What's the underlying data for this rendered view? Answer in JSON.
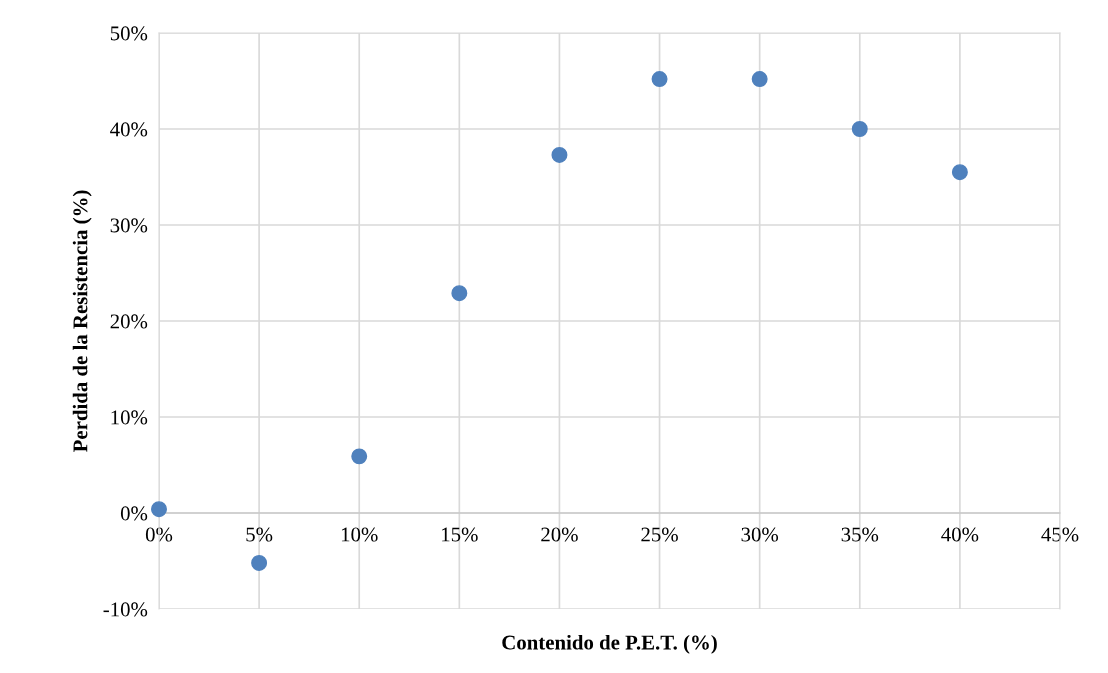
{
  "chart_data": {
    "type": "scatter",
    "xlabel": "Contenido de P.E.T. (%)",
    "ylabel": "Perdida de la Resistencia (%)",
    "x": [
      0,
      5,
      10,
      15,
      20,
      25,
      30,
      35,
      40
    ],
    "series": [
      {
        "color": "#4f81bd",
        "values": [
          0.4,
          -5.2,
          5.9,
          22.9,
          37.3,
          45.2,
          45.2,
          40.0,
          35.5
        ]
      }
    ],
    "xlim": [
      0,
      45
    ],
    "ylim": [
      -10,
      50
    ],
    "xticks": [
      {
        "value": 0,
        "label": "0%"
      },
      {
        "value": 5,
        "label": "5%"
      },
      {
        "value": 10,
        "label": "10%"
      },
      {
        "value": 15,
        "label": "15%"
      },
      {
        "value": 20,
        "label": "20%"
      },
      {
        "value": 25,
        "label": "25%"
      },
      {
        "value": 30,
        "label": "30%"
      },
      {
        "value": 35,
        "label": "35%"
      },
      {
        "value": 40,
        "label": "40%"
      },
      {
        "value": 45,
        "label": "45%"
      }
    ],
    "yticks": [
      {
        "value": -10,
        "label": "-10%"
      },
      {
        "value": 0,
        "label": "0%"
      },
      {
        "value": 10,
        "label": "10%"
      },
      {
        "value": 20,
        "label": "20%"
      },
      {
        "value": 30,
        "label": "30%"
      },
      {
        "value": 40,
        "label": "40%"
      },
      {
        "value": 50,
        "label": "50%"
      }
    ],
    "grid": true,
    "marker": "circle"
  }
}
